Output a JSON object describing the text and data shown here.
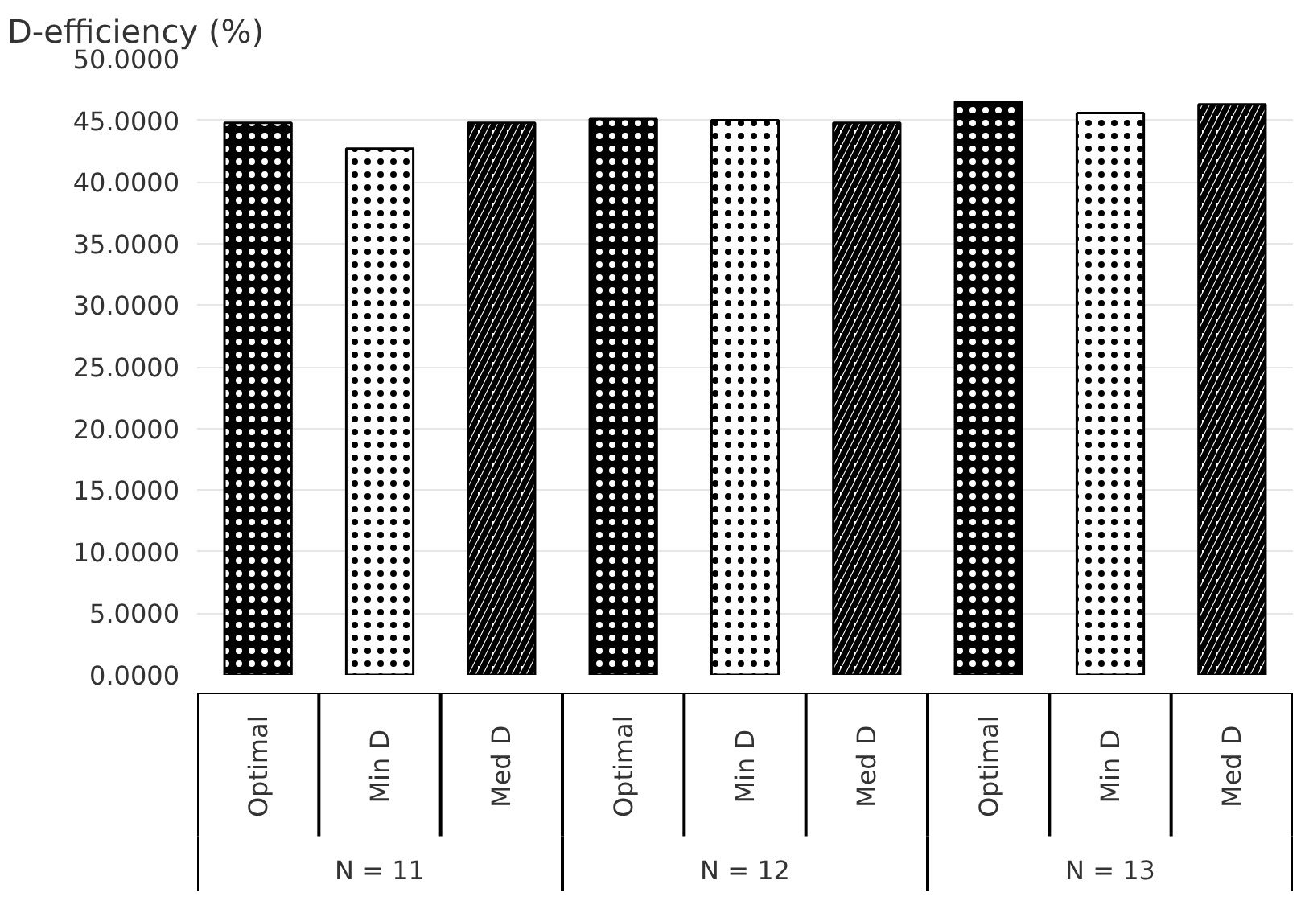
{
  "chart_data": {
    "type": "bar",
    "title": "D-efficiency (%)",
    "categories": [
      "Optimal",
      "Min D",
      "Med D",
      "Optimal",
      "Min D",
      "Med D",
      "Optimal",
      "Min D",
      "Med D"
    ],
    "values": [
      44.8,
      42.7,
      44.8,
      45.1,
      45.0,
      44.8,
      46.5,
      45.6,
      46.3
    ],
    "colors": [
      "#000000",
      "#ffffff",
      "#ffffff",
      "#000000",
      "#ffffff",
      "#ffffff",
      "#000000",
      "#ffffff",
      "#ffffff"
    ],
    "annotations": [
      "N = 11",
      "N = 12",
      "N = 13"
    ],
    "ylim": [
      0,
      50
    ],
    "yticks": [
      {
        "value": 0,
        "label": "0.0000"
      },
      {
        "value": 5,
        "label": "5.0000"
      },
      {
        "value": 10,
        "label": "10.0000"
      },
      {
        "value": 15,
        "label": "15.0000"
      },
      {
        "value": 20,
        "label": "20.0000"
      },
      {
        "value": 25,
        "label": "25.0000"
      },
      {
        "value": 30,
        "label": "30.0000"
      },
      {
        "value": 35,
        "label": "35.0000"
      },
      {
        "value": 40,
        "label": "40.0000"
      },
      {
        "value": 45,
        "label": "45.0000"
      },
      {
        "value": 50,
        "label": "50.0000"
      }
    ],
    "grid": "y"
  }
}
